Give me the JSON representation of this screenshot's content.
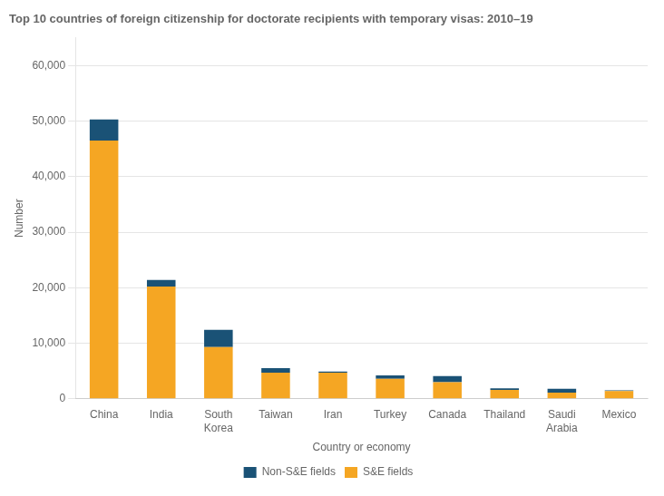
{
  "chart_data": {
    "type": "bar",
    "title": "Top 10 countries of foreign citizenship for doctorate recipients with temporary visas: 2010–19",
    "xlabel": "Country or economy",
    "ylabel": "Number",
    "categories": [
      "China",
      "India",
      "South\nKorea",
      "Taiwan",
      "Iran",
      "Turkey",
      "Canada",
      "Thailand",
      "Saudi\nArabia",
      "Mexico"
    ],
    "series": [
      {
        "name": "S&E fields",
        "color": "#F5A623",
        "values": [
          46500,
          20200,
          9300,
          4700,
          4700,
          3600,
          3000,
          1600,
          1100,
          1400
        ]
      },
      {
        "name": "Non-S&E fields",
        "color": "#1A5276",
        "values": [
          3800,
          1200,
          3100,
          800,
          200,
          600,
          1100,
          300,
          700,
          100
        ]
      }
    ],
    "stacked": true,
    "ylim": [
      0,
      65000
    ],
    "yticks": [
      0,
      {
        "value": 10000,
        "label": "10,000"
      },
      {
        "value": 20000,
        "label": "20,000"
      },
      {
        "value": 30000,
        "label": "30,000"
      },
      {
        "value": 40000,
        "label": "40,000"
      },
      {
        "value": 50000,
        "label": "50,000"
      },
      {
        "value": 60000,
        "label": "60,000"
      }
    ],
    "grid": true,
    "legend": "bottom"
  }
}
